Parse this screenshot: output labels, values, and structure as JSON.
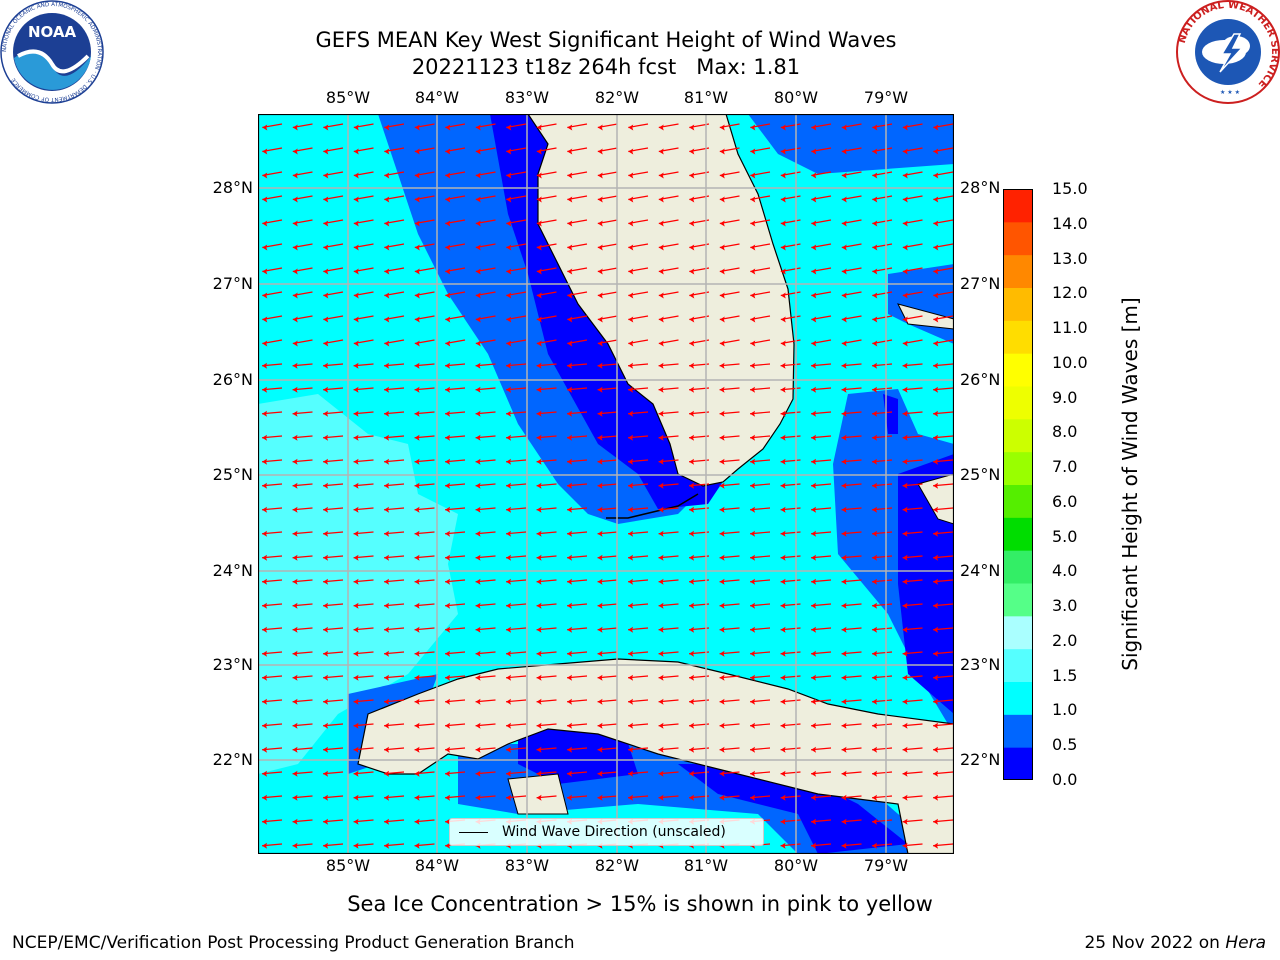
{
  "title": {
    "line1": "GEFS MEAN Key West Significant Height of Wind Waves",
    "line2": "20221123 t18z 264h fcst   Max: 1.81"
  },
  "map": {
    "lon_labels": [
      "85°W",
      "84°W",
      "83°W",
      "82°W",
      "81°W",
      "80°W",
      "79°W"
    ],
    "lat_labels": [
      "28°N",
      "27°N",
      "26°N",
      "25°N",
      "24°N",
      "23°N",
      "22°N"
    ],
    "legend_label": "Wind Wave Direction (unscaled)",
    "colors": {
      "land": "#eeeedd",
      "arrow": "#ff0000",
      "coast": "#000000",
      "grid": "#b4b4b4"
    }
  },
  "colorbar": {
    "title": "Significant Height of Wind Waves [m]",
    "tick_labels": [
      "15.0",
      "14.0",
      "13.0",
      "12.0",
      "11.0",
      "10.0",
      "9.0",
      "8.0",
      "7.0",
      "6.0",
      "5.0",
      "4.0",
      "3.0",
      "2.0",
      "1.5",
      "1.0",
      "0.5",
      "0.0"
    ],
    "colors": [
      "#0000ff",
      "#0066ff",
      "#00ffff",
      "#55ffff",
      "#aaffff",
      "#55ff88",
      "#33ee66",
      "#00dd00",
      "#55ee00",
      "#99ff00",
      "#ccff00",
      "#eeff00",
      "#ffff00",
      "#ffdd00",
      "#ffbb00",
      "#ff8800",
      "#ff5500",
      "#ff2200"
    ]
  },
  "footer": {
    "note": "Sea Ice Concentration > 15% is shown in pink to yellow",
    "left": "NCEP/EMC/Verification Post Processing Product Generation Branch",
    "right_date": "25 Nov 2022 on ",
    "right_host": "Hera"
  },
  "logos": {
    "noaa_text": "NOAA",
    "noaa_ring": "NATIONAL OCEANIC AND ATMOSPHERIC ADMINISTRATION · U.S. DEPARTMENT OF COMMERCE",
    "nws_ring": "NATIONAL WEATHER SERVICE"
  }
}
